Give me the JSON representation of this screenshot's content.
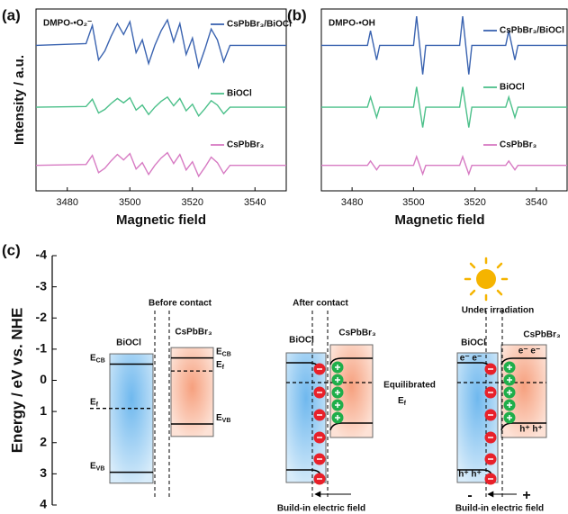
{
  "chart_data": [
    {
      "type": "line",
      "panel_label": "(a)",
      "title": "DMPO-•O₂⁻",
      "x_label": "Magnetic field",
      "y_label": "Intensity / a.u.",
      "x": [
        3470,
        3486,
        3488,
        3490,
        3492,
        3494,
        3496,
        3498,
        3500,
        3502,
        3504,
        3506,
        3508,
        3510,
        3512,
        3514,
        3516,
        3518,
        3520,
        3522,
        3524,
        3526,
        3528,
        3530,
        3532,
        3550
      ],
      "series": [
        {
          "name": "CsPbBr₃/BiOCl",
          "color": "#3a63b0",
          "values": [
            8,
            8.1,
            9.1,
            7.2,
            7.7,
            8.5,
            9.2,
            8.6,
            9.3,
            7.6,
            8.3,
            7.0,
            8.0,
            8.8,
            9.4,
            8.2,
            9.2,
            7.5,
            8.4,
            6.8,
            7.8,
            8.9,
            8.3,
            7.1,
            8.0,
            8.0
          ]
        },
        {
          "name": "BiOCl",
          "color": "#4cc08a",
          "values": [
            4.6,
            4.64,
            5.04,
            4.28,
            4.48,
            4.8,
            5.08,
            4.84,
            5.12,
            4.44,
            4.72,
            4.2,
            4.6,
            4.92,
            5.16,
            4.68,
            5.08,
            4.4,
            4.76,
            4.12,
            4.52,
            4.96,
            4.72,
            4.24,
            4.6,
            4.6
          ]
        },
        {
          "name": "CsPbBr₃",
          "color": "#d77bc3",
          "values": [
            1.4,
            1.45,
            1.95,
            1.0,
            1.25,
            1.65,
            2.0,
            1.7,
            2.05,
            1.2,
            1.55,
            0.9,
            1.4,
            1.8,
            2.1,
            1.5,
            2.0,
            1.15,
            1.6,
            0.8,
            1.3,
            1.85,
            1.55,
            0.95,
            1.4,
            1.4
          ]
        }
      ],
      "xlim": [
        3470,
        3550
      ],
      "xticks": [
        3480,
        3500,
        3520,
        3540
      ],
      "ylim": [
        0,
        10
      ]
    },
    {
      "type": "line",
      "panel_label": "(b)",
      "title": "DMPO-•OH",
      "x_label": "Magnetic field",
      "x": [
        3470,
        3485,
        3486,
        3488,
        3489,
        3500,
        3501,
        3503,
        3504,
        3515,
        3516,
        3518,
        3519,
        3530,
        3531,
        3533,
        3534,
        3550
      ],
      "series": [
        {
          "name": "CsPbBr₃/BiOCl",
          "color": "#3a63b0",
          "values": [
            8,
            8,
            8.8,
            7.2,
            8,
            8,
            9.6,
            6.4,
            8,
            8,
            9.6,
            6.4,
            8,
            8,
            8.8,
            7.2,
            8,
            8
          ]
        },
        {
          "name": "BiOCl",
          "color": "#4cc08a",
          "values": [
            4.6,
            4.6,
            5.16,
            4.04,
            4.6,
            4.6,
            5.72,
            3.48,
            4.6,
            4.6,
            5.72,
            3.48,
            4.6,
            4.6,
            5.16,
            4.04,
            4.6,
            4.6
          ]
        },
        {
          "name": "CsPbBr₃",
          "color": "#d77bc3",
          "values": [
            1.4,
            1.4,
            1.64,
            1.16,
            1.4,
            1.4,
            1.88,
            0.92,
            1.4,
            1.4,
            1.88,
            0.92,
            1.4,
            1.4,
            1.64,
            1.16,
            1.4,
            1.4
          ]
        }
      ],
      "xlim": [
        3470,
        3550
      ],
      "xticks": [
        3480,
        3500,
        3520,
        3540
      ],
      "ylim": [
        0,
        10
      ]
    },
    {
      "type": "band-diagram",
      "panel_label": "(c)",
      "y_label": "Energy / eV vs. NHE",
      "ylim": [
        -4,
        4
      ],
      "yticks": [
        -4,
        -3,
        -2,
        -1,
        0,
        1,
        2,
        3,
        4
      ],
      "stage_titles": [
        "Before contact",
        "After contact",
        "Under irradiation"
      ],
      "material_names": [
        "BiOCl",
        "CsPbBr₃"
      ],
      "levels": {
        "cb": {
          "main": "E",
          "sub": "CB"
        },
        "f": {
          "main": "E",
          "sub": "f"
        },
        "vb": {
          "main": "E",
          "sub": "VB"
        }
      },
      "bands": [
        {
          "top": -0.85,
          "cb": -0.52,
          "f": 0.9,
          "vb": 2.95,
          "bottom": 3.3
        },
        {
          "top": -1.05,
          "cb": -0.72,
          "f": -0.3,
          "vb": 1.4,
          "bottom": 1.8
        }
      ],
      "equilibrated": "Equilibrated",
      "field_label": "Build-in electric field",
      "electrons": "e⁻ e⁻",
      "holes": "h⁺ h⁺",
      "minus": "-",
      "plus": "+"
    }
  ]
}
